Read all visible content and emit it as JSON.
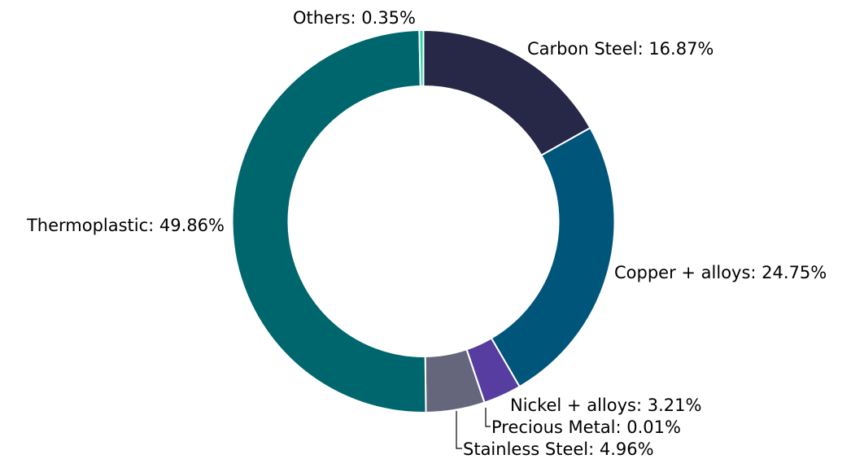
{
  "chart_data": {
    "type": "pie",
    "variant": "donut",
    "slices": [
      {
        "name": "Carbon Steel",
        "value": 16.87,
        "label": "Carbon Steel: 16.87%",
        "color": "#272847"
      },
      {
        "name": "Copper + alloys",
        "value": 24.75,
        "label": "Copper + alloys: 24.75%",
        "color": "#00557a"
      },
      {
        "name": "Nickel + alloys",
        "value": 3.21,
        "label": "Nickel + alloys: 3.21%",
        "color": "#563d9f"
      },
      {
        "name": "Precious Metal",
        "value": 0.01,
        "label": "Precious Metal: 0.01%",
        "color": "#8e5aa6"
      },
      {
        "name": "Stainless Steel",
        "value": 4.96,
        "label": "Stainless Steel: 4.96%",
        "color": "#65657c"
      },
      {
        "name": "Thermoplastic",
        "value": 49.86,
        "label": "Thermoplastic: 49.86%",
        "color": "#00666d"
      },
      {
        "name": "Others",
        "value": 0.35,
        "label": "Others: 0.35%",
        "color": "#26d6a6"
      }
    ],
    "start_angle_deg": 90,
    "direction": "clockwise",
    "legend": "none"
  }
}
